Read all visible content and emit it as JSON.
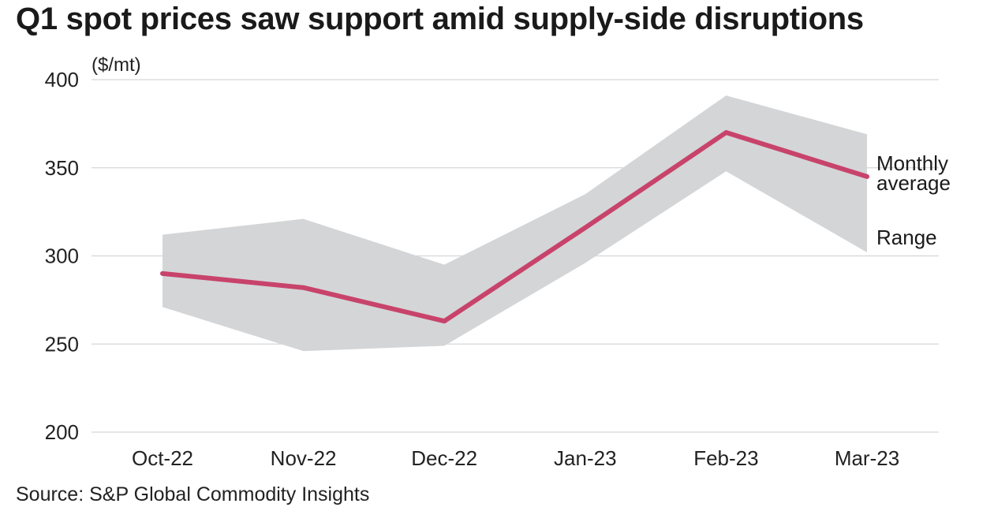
{
  "title": "Q1 spot prices saw support amid supply-side disruptions",
  "source": "Source: S&P Global Commodity Insights",
  "chart_data": {
    "type": "line",
    "ylabel": "($/mt)",
    "categories": [
      "Oct-22",
      "Nov-22",
      "Dec-22",
      "Jan-23",
      "Feb-23",
      "Mar-23"
    ],
    "ylim": [
      200,
      400
    ],
    "yticks": [
      400,
      350,
      300,
      250,
      200
    ],
    "grid": true,
    "series": [
      {
        "name": "Monthly average",
        "type": "line",
        "color": "#c8436b",
        "values": [
          290,
          282,
          263,
          316,
          370,
          345
        ]
      },
      {
        "name": "Range",
        "type": "area-range",
        "color": "#d4d5d7",
        "high": [
          312,
          321,
          295,
          335,
          391,
          369
        ],
        "low": [
          271,
          246,
          249,
          296,
          348,
          302
        ]
      }
    ],
    "legend": {
      "average_line1": "Monthly",
      "average_line2": "average",
      "range": "Range"
    }
  }
}
